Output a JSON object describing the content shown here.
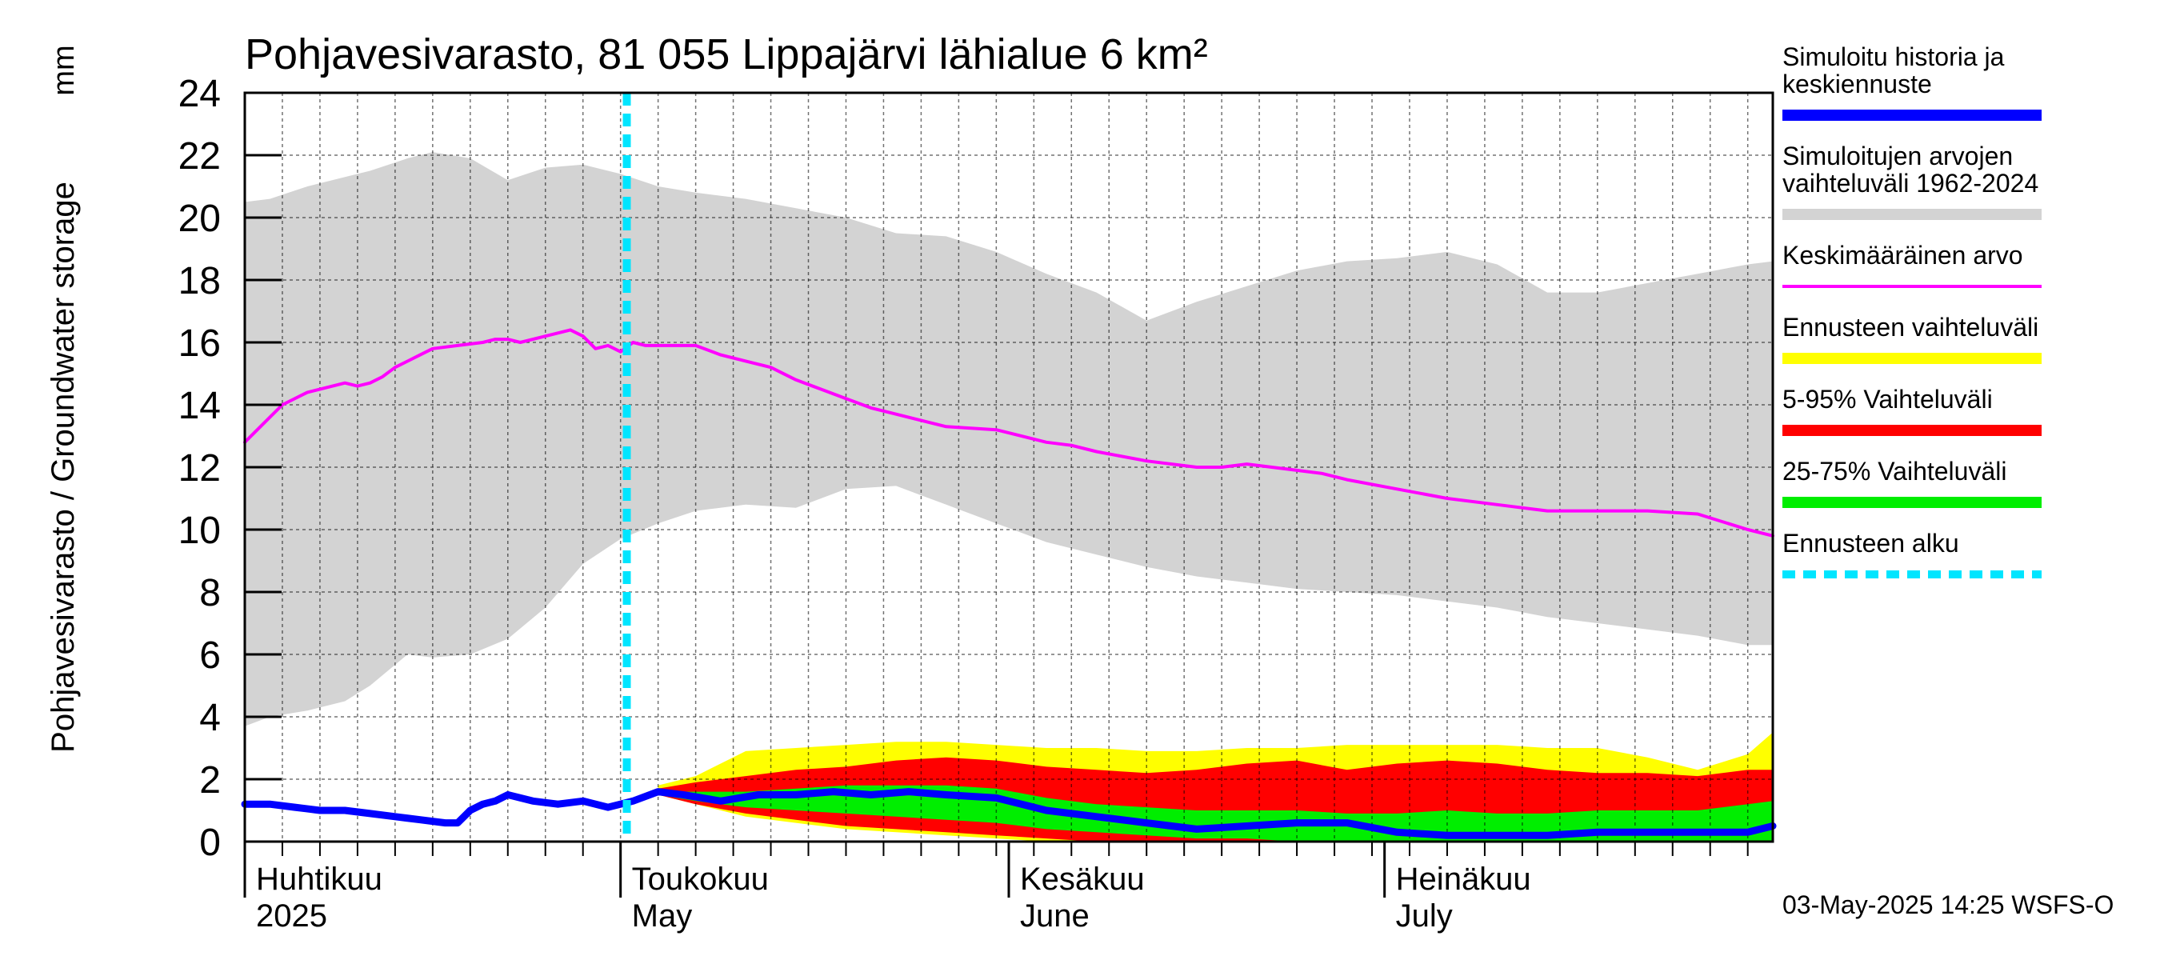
{
  "chart_data": {
    "type": "area",
    "title": "Pohjavesivarasto, 81 055 Lippajärvi lähialue 6 km²",
    "ylabel": "Pohjavesivarasto / Groundwater storage",
    "unit": "mm",
    "ylim": [
      0,
      24
    ],
    "yticks": [
      "0",
      "2",
      "4",
      "6",
      "8",
      "10",
      "12",
      "14",
      "16",
      "18",
      "20",
      "22",
      "24"
    ],
    "x_range_days": [
      0,
      122
    ],
    "x_start_date": "2025-04-01",
    "month_labels": [
      {
        "day": 0,
        "fi": "Huhtikuu",
        "en": "2025"
      },
      {
        "day": 30,
        "fi": "Toukokuu",
        "en": "May"
      },
      {
        "day": 61,
        "fi": "Kesäkuu",
        "en": "June"
      },
      {
        "day": 91,
        "fi": "Heinäkuu",
        "en": "July"
      }
    ],
    "forecast_start_day": 30.5,
    "series": [
      {
        "name": "Simuloitujen arvojen vaihteluväli 1962-2024",
        "color": "#d3d3d3",
        "kind": "band",
        "x": [
          0,
          2,
          5,
          8,
          10,
          13,
          15,
          18,
          21,
          24,
          27,
          30,
          33,
          36,
          40,
          44,
          48,
          52,
          56,
          60,
          64,
          68,
          72,
          76,
          80,
          84,
          88,
          92,
          96,
          100,
          104,
          108,
          112,
          116,
          120,
          122
        ],
        "upper": [
          20.5,
          20.6,
          21.0,
          21.3,
          21.5,
          21.9,
          22.1,
          21.9,
          21.2,
          21.6,
          21.7,
          21.4,
          21.0,
          20.8,
          20.6,
          20.3,
          20.0,
          19.5,
          19.4,
          18.9,
          18.2,
          17.6,
          16.7,
          17.3,
          17.8,
          18.3,
          18.6,
          18.7,
          18.9,
          18.5,
          17.6,
          17.6,
          17.9,
          18.2,
          18.5,
          18.6
        ],
        "lower": [
          3.7,
          4.0,
          4.2,
          4.5,
          5.0,
          6.0,
          5.9,
          6.0,
          6.5,
          7.5,
          8.9,
          9.7,
          10.2,
          10.6,
          10.8,
          10.7,
          11.3,
          11.4,
          10.8,
          10.2,
          9.6,
          9.2,
          8.8,
          8.5,
          8.3,
          8.1,
          8.0,
          7.9,
          7.7,
          7.5,
          7.2,
          7.0,
          6.8,
          6.6,
          6.3,
          6.3
        ]
      },
      {
        "name": "Ennusteen vaihteluväli",
        "color": "#ffff00",
        "kind": "band",
        "x": [
          33,
          36,
          40,
          44,
          48,
          52,
          56,
          60,
          64,
          68,
          72,
          76,
          80,
          84,
          88,
          92,
          96,
          100,
          104,
          108,
          112,
          116,
          120,
          122
        ],
        "upper": [
          1.8,
          2.1,
          2.9,
          3.0,
          3.1,
          3.2,
          3.2,
          3.1,
          3.0,
          3.0,
          2.9,
          2.9,
          3.0,
          3.0,
          3.1,
          3.1,
          3.1,
          3.1,
          3.0,
          3.0,
          2.7,
          2.3,
          2.8,
          3.5
        ],
        "lower": [
          1.5,
          1.2,
          0.8,
          0.6,
          0.4,
          0.3,
          0.2,
          0.1,
          0.0,
          0.0,
          0.0,
          0.0,
          0.0,
          0.0,
          0.0,
          0.0,
          0.0,
          0.0,
          0.0,
          0.0,
          0.0,
          0.0,
          0.0,
          0.0
        ]
      },
      {
        "name": "5-95% Vaihteluväli",
        "color": "#ff0000",
        "kind": "band",
        "x": [
          33,
          36,
          40,
          44,
          48,
          52,
          56,
          60,
          64,
          68,
          72,
          76,
          80,
          84,
          88,
          92,
          96,
          100,
          104,
          108,
          112,
          116,
          120,
          122
        ],
        "upper": [
          1.7,
          1.9,
          2.1,
          2.3,
          2.4,
          2.6,
          2.7,
          2.6,
          2.4,
          2.3,
          2.2,
          2.3,
          2.5,
          2.6,
          2.3,
          2.5,
          2.6,
          2.5,
          2.3,
          2.2,
          2.2,
          2.1,
          2.3,
          2.3
        ],
        "lower": [
          1.5,
          1.2,
          0.9,
          0.7,
          0.5,
          0.4,
          0.3,
          0.2,
          0.1,
          0.0,
          0.0,
          0.0,
          0.0,
          0.0,
          0.0,
          0.0,
          0.0,
          0.0,
          0.0,
          0.0,
          0.0,
          0.0,
          0.0,
          0.0
        ]
      },
      {
        "name": "25-75% Vaihteluväli",
        "color": "#00ee00",
        "kind": "band",
        "x": [
          33,
          36,
          40,
          44,
          48,
          52,
          56,
          60,
          64,
          68,
          72,
          76,
          80,
          84,
          88,
          92,
          96,
          100,
          104,
          108,
          112,
          116,
          120,
          122
        ],
        "upper": [
          1.6,
          1.6,
          1.6,
          1.7,
          1.8,
          1.8,
          1.8,
          1.7,
          1.4,
          1.2,
          1.1,
          1.0,
          1.0,
          1.0,
          0.9,
          0.9,
          1.0,
          0.9,
          0.9,
          1.0,
          1.0,
          1.0,
          1.2,
          1.3
        ],
        "lower": [
          1.5,
          1.3,
          1.1,
          1.0,
          0.9,
          0.8,
          0.7,
          0.6,
          0.4,
          0.3,
          0.2,
          0.1,
          0.1,
          0.0,
          0.0,
          0.0,
          0.0,
          0.0,
          0.0,
          0.0,
          0.0,
          0.0,
          0.0,
          0.0
        ]
      },
      {
        "name": "Keskimääräinen arvo",
        "color": "#ff00ff",
        "kind": "line",
        "width": 4,
        "x": [
          0,
          2,
          3,
          5,
          8,
          9,
          10,
          11,
          12,
          14,
          15,
          17,
          19,
          20,
          21,
          22,
          24,
          26,
          27,
          28,
          29,
          30,
          31,
          32,
          34,
          36,
          38,
          40,
          42,
          44,
          46,
          48,
          50,
          52,
          56,
          60,
          64,
          66,
          68,
          72,
          76,
          78,
          80,
          84,
          86,
          88,
          92,
          96,
          100,
          104,
          108,
          112,
          116,
          120,
          122
        ],
        "y": [
          12.8,
          13.6,
          14.0,
          14.4,
          14.7,
          14.6,
          14.7,
          14.9,
          15.2,
          15.6,
          15.8,
          15.9,
          16.0,
          16.1,
          16.1,
          16.0,
          16.2,
          16.4,
          16.2,
          15.8,
          15.9,
          15.7,
          16.0,
          15.9,
          15.9,
          15.9,
          15.6,
          15.4,
          15.2,
          14.8,
          14.5,
          14.2,
          13.9,
          13.7,
          13.3,
          13.2,
          12.8,
          12.7,
          12.5,
          12.2,
          12.0,
          12.0,
          12.1,
          11.9,
          11.8,
          11.6,
          11.3,
          11.0,
          10.8,
          10.6,
          10.6,
          10.6,
          10.5,
          10.0,
          9.8
        ]
      },
      {
        "name": "Simuloitu historia ja keskiennuste",
        "color": "#0000ff",
        "kind": "line",
        "width": 9,
        "x": [
          0,
          2,
          4,
          6,
          8,
          10,
          12,
          14,
          16,
          17,
          18,
          19,
          20,
          21,
          23,
          25,
          27,
          29,
          31,
          33,
          35,
          38,
          41,
          44,
          47,
          50,
          53,
          56,
          60,
          64,
          68,
          72,
          76,
          80,
          84,
          88,
          92,
          96,
          100,
          104,
          108,
          112,
          116,
          120,
          122
        ],
        "y": [
          1.2,
          1.2,
          1.1,
          1.0,
          1.0,
          0.9,
          0.8,
          0.7,
          0.6,
          0.6,
          1.0,
          1.2,
          1.3,
          1.5,
          1.3,
          1.2,
          1.3,
          1.1,
          1.3,
          1.6,
          1.5,
          1.3,
          1.5,
          1.5,
          1.6,
          1.5,
          1.6,
          1.5,
          1.4,
          1.0,
          0.8,
          0.6,
          0.4,
          0.5,
          0.6,
          0.6,
          0.3,
          0.2,
          0.2,
          0.2,
          0.3,
          0.3,
          0.3,
          0.3,
          0.5
        ]
      },
      {
        "name": "Ennusteen alku",
        "color": "#00e5ff",
        "kind": "vline"
      }
    ],
    "legend": [
      {
        "label": "Simuloitu historia ja keskiennuste",
        "color": "#0000ff",
        "style": "thick"
      },
      {
        "label": "Simuloitujen arvojen vaihteluväli 1962-2024",
        "color": "#d3d3d3",
        "style": "thick"
      },
      {
        "label": "Keskimääräinen arvo",
        "color": "#ff00ff",
        "style": "thin"
      },
      {
        "label": "Ennusteen vaihteluväli",
        "color": "#ffff00",
        "style": "thick"
      },
      {
        "label": "5-95% Vaihteluväli",
        "color": "#ff0000",
        "style": "thick"
      },
      {
        "label": "25-75% Vaihteluväli",
        "color": "#00ee00",
        "style": "thick"
      },
      {
        "label": "Ennusteen alku",
        "color": "#00e5ff",
        "style": "dashed"
      }
    ],
    "legend_lines": [
      [
        "Simuloitu historia ja",
        "keskiennuste"
      ],
      [
        "Simuloitujen arvojen",
        "vaihteluväli 1962-2024"
      ],
      [
        "Keskimääräinen arvo"
      ],
      [
        "Ennusteen vaihteluväli"
      ],
      [
        "5-95% Vaihteluväli"
      ],
      [
        "25-75% Vaihteluväli"
      ],
      [
        "Ennusteen alku"
      ]
    ],
    "footer": "03-May-2025 14:25 WSFS-O"
  }
}
